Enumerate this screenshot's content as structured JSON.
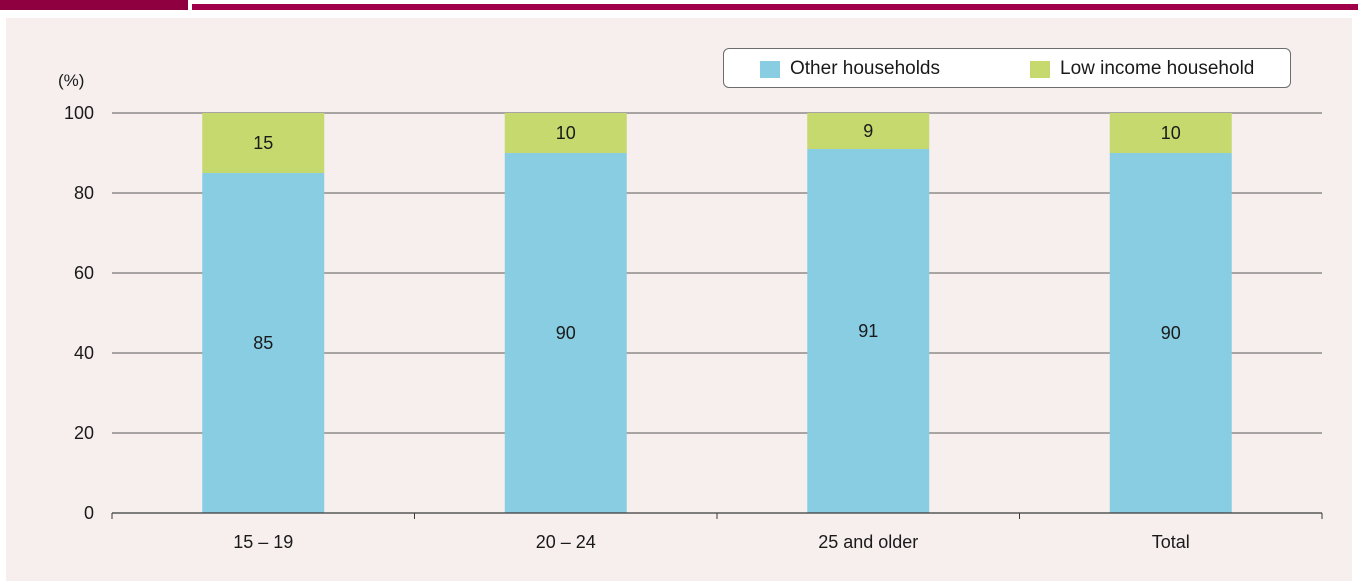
{
  "chart_data": {
    "type": "bar",
    "stacked": true,
    "categories": [
      "15 – 19",
      "20 – 24",
      "25 and older",
      "Total"
    ],
    "series": [
      {
        "name": "Other households",
        "values": [
          85,
          90,
          91,
          90
        ],
        "color": "#89cde3"
      },
      {
        "name": "Low income household",
        "values": [
          15,
          10,
          9,
          10
        ],
        "color": "#c6d96e"
      }
    ],
    "y_unit_label": "(%)",
    "ylim": [
      0,
      100
    ],
    "yticks": [
      0,
      20,
      40,
      60,
      80,
      100
    ],
    "grid": true,
    "legend_position": "top-right"
  },
  "colors": {
    "panel_background": "#f7eeee",
    "accent_bar": "#8e0040",
    "top_line": "#a0004a",
    "gridline": "#5a5a5a"
  }
}
